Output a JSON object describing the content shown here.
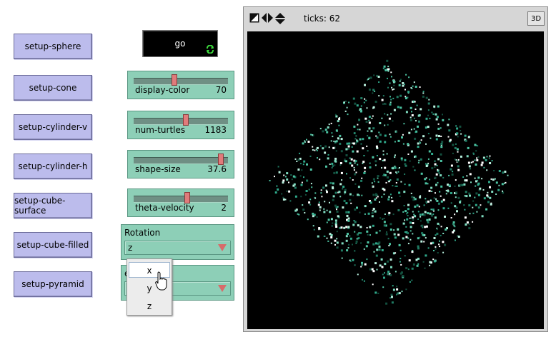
{
  "buttons": {
    "setup_sphere": "setup-sphere",
    "setup_cone": "setup-cone",
    "setup_cylinder_v": "setup-cylinder-v",
    "setup_cylinder_h": "setup-cylinder-h",
    "setup_cube_surface": "setup-cube-surface",
    "setup_cube_filled": "setup-cube-filled",
    "setup_pyramid": "setup-pyramid",
    "go": "go"
  },
  "sliders": {
    "display_color": {
      "label": "display-color",
      "value": "70",
      "fraction": 0.42
    },
    "num_turtles": {
      "label": "num-turtles",
      "value": "1183",
      "fraction": 0.55
    },
    "shape_size": {
      "label": "shape-size",
      "value": "37.6",
      "fraction": 0.94
    },
    "theta_velocity": {
      "label": "theta-velocity",
      "value": "2",
      "fraction": 0.56
    }
  },
  "choosers": {
    "rotation": {
      "label": "Rotation",
      "selected": "z"
    },
    "view": {
      "label_fragment": "ew",
      "selected_fragment": "op"
    }
  },
  "rotation_dropdown": {
    "options": [
      "x",
      "y",
      "z"
    ],
    "highlighted": "x"
  },
  "view": {
    "ticks_label": "ticks: 62",
    "btn_3d": "3D"
  },
  "colors": {
    "button_bg": "#bcbcec",
    "widget_green": "#8dcfb7",
    "knob": "#e07b7b",
    "turtle_teal": "#2fa88a"
  }
}
